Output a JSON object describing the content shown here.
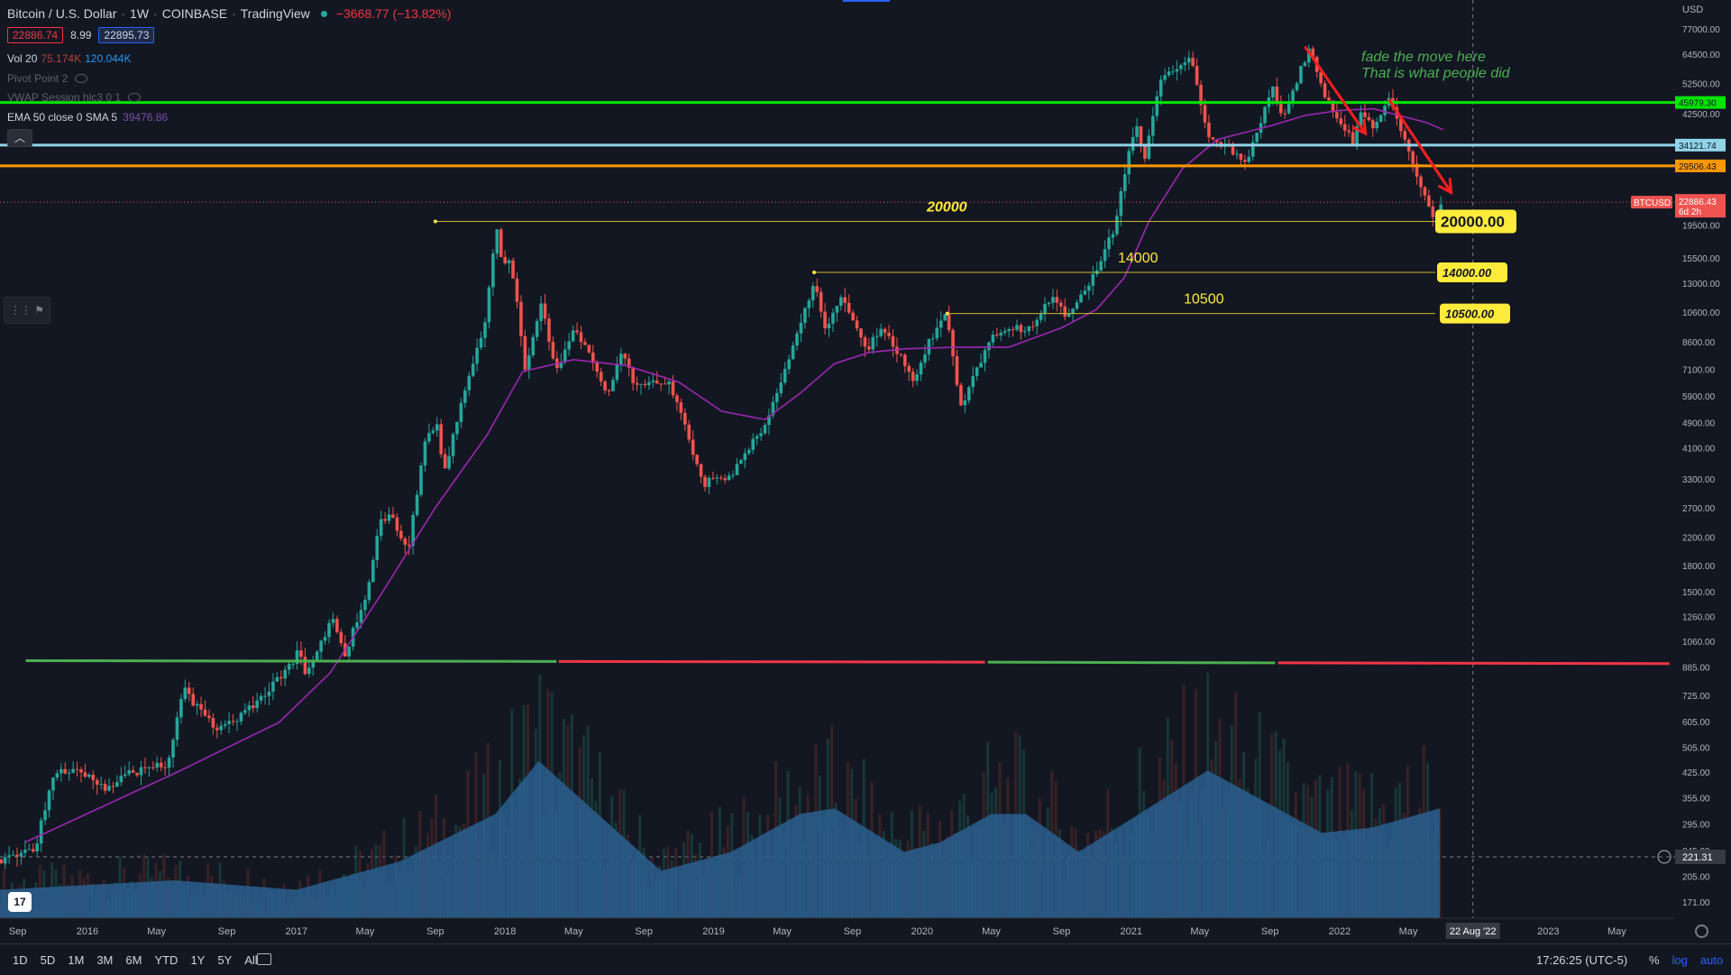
{
  "header": {
    "symbol": "Bitcoin / U.S. Dollar",
    "interval": "1W",
    "exchange": "COINBASE",
    "platform": "TradingView",
    "change": "−3668.77 (−13.82%)"
  },
  "quote": {
    "bid": "22886.74",
    "spread": "8.99",
    "ask": "22895.73"
  },
  "indicators": {
    "vol": {
      "label": "Vol 20",
      "v1": "75.174K",
      "v2": "120.044K"
    },
    "pivot": {
      "label": "Pivot Point 2"
    },
    "vwap": {
      "label": "VWAP Session hlc3 0 1"
    },
    "ema": {
      "label": "EMA 50 close 0 SMA 5",
      "value": "39476.86"
    }
  },
  "bottom_bar": {
    "ranges": [
      "1D",
      "5D",
      "1M",
      "3M",
      "6M",
      "YTD",
      "1Y",
      "5Y",
      "All"
    ],
    "time": "17:26:25 (UTC-5)",
    "pct": "%",
    "log": "log",
    "auto": "auto"
  },
  "currency": "USD",
  "logo_text": "17",
  "colors": {
    "up": "#26a69a",
    "down": "#ef5350",
    "ema": "#9c27b0",
    "green_level": "#00e600",
    "cyan_level": "#8fd3e8",
    "orange_level": "#ff9800",
    "yellow": "#ffeb3b",
    "red_annot": "#ff1e1e",
    "green_text": "#4caf50",
    "volume_ma": "#2a5f8f"
  },
  "chart_data": {
    "type": "candlestick",
    "ylog": true,
    "ylim": [
      150,
      90000
    ],
    "y_ticks": [
      "171.00",
      "205.00",
      "245.00",
      "295.00",
      "355.00",
      "425.00",
      "505.00",
      "605.00",
      "725.00",
      "885.00",
      "1060.00",
      "1260.00",
      "1500.00",
      "1800.00",
      "2200.00",
      "2700.00",
      "3300.00",
      "4100.00",
      "4900.00",
      "5900.00",
      "7100.00",
      "8600.00",
      "10600.00",
      "13000.00",
      "15500.00",
      "19500.00",
      "42500.00",
      "52500.00",
      "64500.00",
      "77000.00"
    ],
    "x_labels": [
      {
        "date": "2015-09",
        "label": "Sep"
      },
      {
        "date": "2016-01",
        "label": "2016"
      },
      {
        "date": "2016-05",
        "label": "May"
      },
      {
        "date": "2016-09",
        "label": "Sep"
      },
      {
        "date": "2017-01",
        "label": "2017"
      },
      {
        "date": "2017-05",
        "label": "May"
      },
      {
        "date": "2017-09",
        "label": "Sep"
      },
      {
        "date": "2018-01",
        "label": "2018"
      },
      {
        "date": "2018-05",
        "label": "May"
      },
      {
        "date": "2018-09",
        "label": "Sep"
      },
      {
        "date": "2019-01",
        "label": "2019"
      },
      {
        "date": "2019-05",
        "label": "May"
      },
      {
        "date": "2019-09",
        "label": "Sep"
      },
      {
        "date": "2020-01",
        "label": "2020"
      },
      {
        "date": "2020-05",
        "label": "May"
      },
      {
        "date": "2020-09",
        "label": "Sep"
      },
      {
        "date": "2021-01",
        "label": "2021"
      },
      {
        "date": "2021-05",
        "label": "May"
      },
      {
        "date": "2021-09",
        "label": "Sep"
      },
      {
        "date": "2022-01",
        "label": "2022"
      },
      {
        "date": "2022-05",
        "label": "May"
      },
      {
        "date": "2023-01",
        "label": "2023"
      },
      {
        "date": "2023-05",
        "label": "May"
      }
    ],
    "price_path": [
      [
        "2015-08-01",
        230
      ],
      [
        "2015-10-01",
        250
      ],
      [
        "2015-11-05",
        420
      ],
      [
        "2015-12-15",
        440
      ],
      [
        "2016-02-01",
        380
      ],
      [
        "2016-03-15",
        420
      ],
      [
        "2016-05-20",
        450
      ],
      [
        "2016-06-18",
        760
      ],
      [
        "2016-07-15",
        650
      ],
      [
        "2016-08-10",
        580
      ],
      [
        "2016-09-20",
        610
      ],
      [
        "2016-11-01",
        720
      ],
      [
        "2016-12-25",
        900
      ],
      [
        "2017-01-05",
        1050
      ],
      [
        "2017-01-15",
        820
      ],
      [
        "2017-03-05",
        1250
      ],
      [
        "2017-03-25",
        950
      ],
      [
        "2017-05-05",
        1500
      ],
      [
        "2017-05-25",
        2400
      ],
      [
        "2017-06-15",
        2600
      ],
      [
        "2017-07-15",
        2000
      ],
      [
        "2017-08-15",
        4300
      ],
      [
        "2017-09-05",
        4800
      ],
      [
        "2017-09-15",
        3300
      ],
      [
        "2017-10-20",
        6000
      ],
      [
        "2017-11-25",
        9500
      ],
      [
        "2017-12-17",
        19000
      ],
      [
        "2017-12-28",
        14000
      ],
      [
        "2018-01-10",
        16000
      ],
      [
        "2018-02-06",
        7000
      ],
      [
        "2018-03-05",
        11200
      ],
      [
        "2018-04-01",
        7000
      ],
      [
        "2018-05-05",
        9600
      ],
      [
        "2018-06-28",
        5900
      ],
      [
        "2018-07-25",
        8200
      ],
      [
        "2018-08-15",
        6300
      ],
      [
        "2018-10-15",
        6500
      ],
      [
        "2018-11-20",
        4300
      ],
      [
        "2018-12-15",
        3200
      ],
      [
        "2019-02-05",
        3450
      ],
      [
        "2019-04-05",
        5000
      ],
      [
        "2019-05-25",
        8700
      ],
      [
        "2019-06-26",
        13000
      ],
      [
        "2019-07-15",
        9500
      ],
      [
        "2019-08-10",
        11800
      ],
      [
        "2019-09-25",
        8200
      ],
      [
        "2019-10-26",
        9500
      ],
      [
        "2019-12-18",
        6600
      ],
      [
        "2020-01-15",
        8700
      ],
      [
        "2020-02-14",
        10400
      ],
      [
        "2020-03-12",
        5000
      ],
      [
        "2020-03-20",
        6300
      ],
      [
        "2020-05-01",
        8800
      ],
      [
        "2020-06-01",
        9600
      ],
      [
        "2020-07-01",
        9200
      ],
      [
        "2020-08-15",
        12000
      ],
      [
        "2020-09-10",
        10300
      ],
      [
        "2020-10-20",
        13000
      ],
      [
        "2020-12-01",
        19000
      ],
      [
        "2021-01-08",
        40000
      ],
      [
        "2021-01-25",
        31000
      ],
      [
        "2021-02-20",
        55000
      ],
      [
        "2021-04-14",
        63000
      ],
      [
        "2021-05-19",
        35000
      ],
      [
        "2021-06-20",
        33000
      ],
      [
        "2021-07-20",
        30000
      ],
      [
        "2021-09-06",
        51000
      ],
      [
        "2021-09-22",
        41000
      ],
      [
        "2021-11-10",
        68000
      ],
      [
        "2021-12-05",
        49000
      ],
      [
        "2022-01-24",
        35000
      ],
      [
        "2022-02-10",
        44000
      ],
      [
        "2022-03-01",
        38000
      ],
      [
        "2022-03-30",
        47000
      ],
      [
        "2022-05-10",
        30000
      ],
      [
        "2022-06-18",
        19000
      ],
      [
        "2022-06-27",
        22886
      ]
    ],
    "ema_path": [
      [
        "2015-09-15",
        260
      ],
      [
        "2016-06-01",
        420
      ],
      [
        "2016-12-01",
        600
      ],
      [
        "2017-03-01",
        850
      ],
      [
        "2017-06-01",
        1500
      ],
      [
        "2017-09-01",
        2700
      ],
      [
        "2017-12-01",
        4500
      ],
      [
        "2018-02-01",
        7000
      ],
      [
        "2018-05-01",
        7600
      ],
      [
        "2018-08-01",
        7300
      ],
      [
        "2018-11-01",
        6500
      ],
      [
        "2019-01-15",
        5300
      ],
      [
        "2019-04-01",
        5000
      ],
      [
        "2019-06-01",
        6000
      ],
      [
        "2019-08-01",
        7400
      ],
      [
        "2019-10-01",
        8000
      ],
      [
        "2019-12-01",
        8200
      ],
      [
        "2020-03-01",
        8300
      ],
      [
        "2020-06-01",
        8300
      ],
      [
        "2020-09-01",
        9500
      ],
      [
        "2020-11-01",
        10800
      ],
      [
        "2020-12-20",
        13500
      ],
      [
        "2021-02-01",
        20000
      ],
      [
        "2021-04-01",
        29000
      ],
      [
        "2021-06-01",
        35500
      ],
      [
        "2021-09-01",
        39000
      ],
      [
        "2021-11-01",
        42000
      ],
      [
        "2022-01-01",
        43500
      ],
      [
        "2022-03-01",
        44000
      ],
      [
        "2022-06-01",
        40000
      ],
      [
        "2022-07-01",
        38000
      ]
    ],
    "levels": [
      {
        "name": "green",
        "price": 45979.3,
        "label": "45979.30"
      },
      {
        "name": "cyan",
        "price": 34121.74,
        "label": "34121.74"
      },
      {
        "name": "orange",
        "price": 29506.43,
        "label": "29506.43"
      }
    ],
    "current": {
      "symbol": "BTCUSD",
      "price": 22886.43,
      "label": "22886.43",
      "countdown": "6d 2h"
    },
    "horizontal_rays": [
      {
        "from": "2017-09-01",
        "price": 20000,
        "label": "20000",
        "badge": "20000.00"
      },
      {
        "from": "2019-06-26",
        "price": 14000,
        "label": "14000",
        "badge": "14000.00"
      },
      {
        "from": "2020-02-14",
        "price": 10500,
        "label": "10500",
        "badge": "10500.00"
      }
    ],
    "support_segments": [
      {
        "from": "2015-09-15",
        "to": "2018-04-01",
        "price": 925,
        "color": "green"
      },
      {
        "from": "2018-04-05",
        "to": "2020-04-20",
        "price": 925,
        "color": "red"
      },
      {
        "from": "2020-04-25",
        "to": "2021-09-10",
        "price": 925,
        "color": "green"
      },
      {
        "from": "2021-09-15",
        "to": "2023-08-01",
        "price": 925,
        "color": "red"
      }
    ],
    "annotations": [
      "fade the move here",
      "That is what people did"
    ],
    "arrows": [
      {
        "from": [
          "2021-11-01",
          68000
        ],
        "to": [
          "2022-02-15",
          37000
        ]
      },
      {
        "from": [
          "2022-03-28",
          47000
        ],
        "to": [
          "2022-07-15",
          24500
        ]
      }
    ],
    "crosshair": {
      "date": "2022-08-22",
      "price": 221.31,
      "date_label": "22 Aug '22",
      "price_label": "221.31"
    },
    "volume_ma": [
      [
        "2015-08-01",
        0.15
      ],
      [
        "2016-06-01",
        0.2
      ],
      [
        "2017-01-01",
        0.15
      ],
      [
        "2017-07-01",
        0.3
      ],
      [
        "2017-12-15",
        0.55
      ],
      [
        "2018-03-01",
        0.83
      ],
      [
        "2018-06-01",
        0.58
      ],
      [
        "2018-10-01",
        0.25
      ],
      [
        "2019-02-01",
        0.35
      ],
      [
        "2019-06-01",
        0.55
      ],
      [
        "2019-08-01",
        0.58
      ],
      [
        "2019-12-01",
        0.35
      ],
      [
        "2020-02-01",
        0.4
      ],
      [
        "2020-05-01",
        0.55
      ],
      [
        "2020-07-01",
        0.55
      ],
      [
        "2020-10-01",
        0.35
      ],
      [
        "2021-01-15",
        0.55
      ],
      [
        "2021-05-15",
        0.78
      ],
      [
        "2021-09-01",
        0.6
      ],
      [
        "2021-12-01",
        0.45
      ],
      [
        "2022-03-01",
        0.48
      ],
      [
        "2022-06-25",
        0.58
      ]
    ]
  }
}
